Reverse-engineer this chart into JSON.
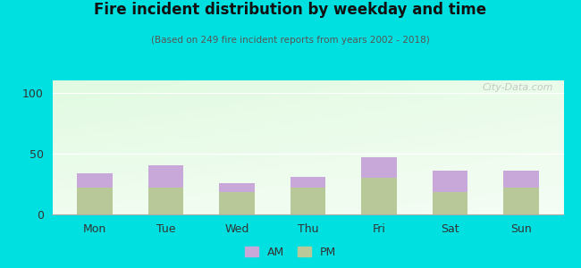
{
  "categories": [
    "Mon",
    "Tue",
    "Wed",
    "Thu",
    "Fri",
    "Sat",
    "Sun"
  ],
  "am_values": [
    12,
    18,
    8,
    9,
    17,
    18,
    14
  ],
  "pm_values": [
    22,
    22,
    18,
    22,
    30,
    18,
    22
  ],
  "am_color": "#c8a8d8",
  "pm_color": "#b8c898",
  "title": "Fire incident distribution by weekday and time",
  "subtitle": "(Based on 249 fire incident reports from years 2002 - 2018)",
  "ylabel_ticks": [
    0,
    50,
    100
  ],
  "ylim": [
    0,
    110
  ],
  "background_color": "#00e0e0",
  "watermark": "City-Data.com",
  "legend_am": "AM",
  "legend_pm": "PM"
}
